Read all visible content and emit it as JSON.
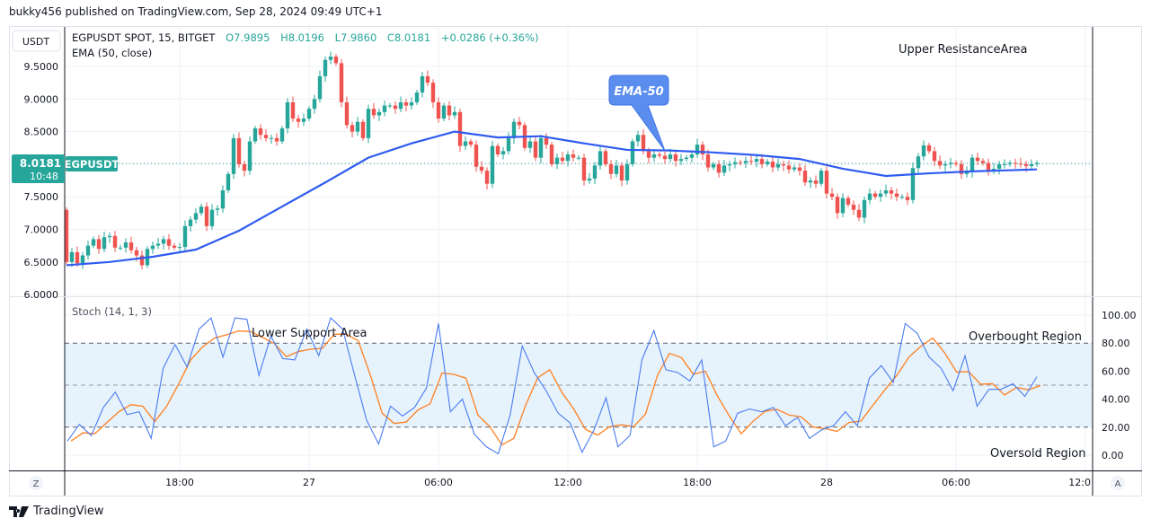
{
  "publish_line": "bukky456 published on TradingView.com, Sep 28, 2024 09:49 UTC+1",
  "header": {
    "currency_button": "USDT",
    "symbol": "EGPUSDT SPOT, 15, BITGET",
    "open": "O7.9895",
    "high": "H8.0196",
    "low": "L7.9860",
    "close": "C8.0181",
    "change": "+0.0286 (+0.36%)",
    "indicator": "EMA (50, close)"
  },
  "price_tag": {
    "price": "8.0181",
    "countdown": "10:48",
    "symbol": "EGPUSDT"
  },
  "annotations": {
    "upper": "Upper ResistanceArea",
    "lower": "Lower Support Area",
    "ema_callout": "EMA-50",
    "overbought": "Overbought Region",
    "oversold": "Oversold Region"
  },
  "stoch_title": "Stoch (14, 1, 3)",
  "buttons": {
    "zoom": "Z",
    "auto": "A"
  },
  "footer": {
    "brand": "TradingView"
  },
  "colors": {
    "up": "#26a69a",
    "down": "#ef5350",
    "ema": "#2f5cf0",
    "stoch_k": "#4a7cf0",
    "stoch_d": "#ff7f1e",
    "band": "#e6f2fc"
  },
  "chart_data": [
    {
      "type": "candlestick",
      "title": "EGPUSDT SPOT, 15, BITGET",
      "interval": "15m",
      "price_ticks": [
        "9.5000",
        "9.0000",
        "8.5000",
        "7.5000",
        "7.0000",
        "6.5000",
        "6.0000"
      ],
      "ylim": [
        6.0,
        9.5
      ],
      "time_ticks": [
        "18:00",
        "27",
        "06:00",
        "12:00",
        "18:00",
        "28",
        "06:00",
        "12:0"
      ],
      "first_open": 7.3,
      "closes": [
        6.5,
        6.65,
        6.48,
        6.6,
        6.75,
        6.85,
        6.7,
        6.88,
        6.9,
        6.72,
        6.72,
        6.8,
        6.68,
        6.6,
        6.45,
        6.7,
        6.75,
        6.78,
        6.85,
        6.75,
        6.72,
        6.73,
        7.05,
        7.15,
        7.25,
        7.35,
        7.05,
        7.3,
        7.32,
        7.6,
        7.85,
        8.4,
        8.0,
        7.9,
        8.35,
        8.55,
        8.45,
        8.4,
        8.4,
        8.35,
        8.55,
        8.95,
        8.7,
        8.65,
        8.7,
        8.85,
        9.0,
        9.35,
        9.6,
        9.65,
        9.55,
        8.95,
        8.6,
        8.5,
        8.65,
        8.4,
        8.85,
        8.75,
        8.8,
        8.9,
        8.9,
        8.85,
        8.95,
        8.9,
        8.95,
        9.1,
        9.35,
        9.25,
        8.95,
        8.7,
        8.9,
        8.75,
        8.8,
        8.28,
        8.35,
        8.3,
        7.96,
        7.9,
        7.7,
        8.28,
        8.15,
        8.2,
        8.4,
        8.65,
        8.6,
        8.25,
        8.35,
        8.1,
        8.4,
        8.3,
        8.0,
        8.1,
        8.05,
        8.15,
        8.1,
        8.1,
        7.75,
        7.78,
        7.98,
        8.2,
        8.0,
        7.85,
        7.98,
        7.75,
        8.0,
        8.35,
        8.45,
        8.2,
        8.1,
        8.15,
        8.13,
        8.08,
        8.15,
        8.05,
        8.08,
        8.1,
        8.15,
        8.3,
        8.15,
        7.95,
        8.0,
        7.87,
        7.98,
        8.0,
        8.03,
        8.02,
        8.05,
        8.04,
        8.08,
        8.0,
        8.04,
        7.95,
        8.0,
        7.98,
        7.92,
        7.95,
        7.9,
        7.72,
        7.75,
        7.7,
        7.9,
        7.55,
        7.5,
        7.25,
        7.48,
        7.38,
        7.3,
        7.18,
        7.45,
        7.55,
        7.5,
        7.55,
        7.6,
        7.55,
        7.5,
        7.5,
        7.45,
        7.94,
        8.12,
        8.29,
        8.2,
        8.05,
        7.98,
        8.0,
        8.02,
        8.0,
        7.85,
        7.88,
        8.1,
        8.05,
        8.02,
        7.9,
        7.93,
        8.0,
        8.0,
        8.02,
        8.01,
        8.0,
        7.97,
        8.0,
        8.0181
      ],
      "ema50_every_2h": [
        6.45,
        6.5,
        6.58,
        6.69,
        6.98,
        7.35,
        7.72,
        8.1,
        8.32,
        8.5,
        8.41,
        8.43,
        8.32,
        8.22,
        8.21,
        8.18,
        8.14,
        8.08,
        7.93,
        7.82,
        7.86,
        7.89,
        7.91,
        7.92
      ],
      "last_price": 8.0181
    },
    {
      "type": "line",
      "title": "Stoch (14, 1, 3)",
      "ylim": [
        0,
        100
      ],
      "y_ticks": [
        "100.00",
        "80.00",
        "60.00",
        "40.00",
        "20.00",
        "0.00"
      ],
      "bands": [
        20,
        50,
        80
      ],
      "k_values": [
        10,
        22,
        14,
        34,
        45,
        29,
        31,
        12,
        62,
        79,
        63,
        90,
        98,
        70,
        98,
        97,
        57,
        85,
        69,
        68,
        90,
        71,
        98,
        90,
        57,
        25,
        8,
        35,
        28,
        34,
        48,
        94,
        31,
        40,
        15,
        6,
        1,
        29,
        78,
        59,
        46,
        30,
        23,
        2,
        18,
        41,
        6,
        14,
        68,
        89,
        61,
        59,
        53,
        68,
        6,
        10,
        30,
        33,
        31,
        34,
        21,
        27,
        12,
        18,
        21,
        31,
        21,
        55,
        64,
        52,
        94,
        87,
        70,
        62,
        46,
        71,
        35,
        47,
        47,
        51,
        42,
        56
      ]
    }
  ]
}
